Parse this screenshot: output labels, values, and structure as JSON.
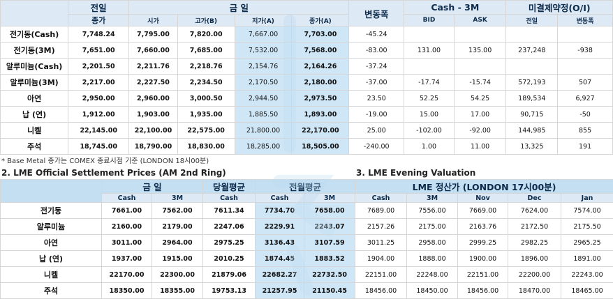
{
  "top": {
    "headers": {
      "prev_day_top": "전일",
      "prev_day_bottom": "종가",
      "today": "금      일",
      "open": "시가",
      "high": "고가(B)",
      "low": "저가(A)",
      "close": "종가(A)",
      "change": "변동폭",
      "cash3m": "Cash - 3M",
      "bid": "BID",
      "ask": "ASK",
      "oi": "미결제약정(O/I)",
      "oi_prev": "전일",
      "oi_change": "변동폭"
    },
    "rows": [
      {
        "label": "전기동(Cash)",
        "prev": "7,748.24",
        "open": "7,795.00",
        "high": "7,820.00",
        "low": "7,667.00",
        "close": "7,703.00",
        "change": "-45.24",
        "bid": "",
        "ask": "",
        "oi": "",
        "oi_change": ""
      },
      {
        "label": "전기동(3M)",
        "prev": "7,651.00",
        "open": "7,660.00",
        "high": "7,685.00",
        "low": "7,532.00",
        "close": "7,568.00",
        "change": "-83.00",
        "bid": "131.00",
        "ask": "135.00",
        "oi": "237,248",
        "oi_change": "-938"
      },
      {
        "label": "알루미늄(Cash)",
        "prev": "2,201.50",
        "open": "2,211.76",
        "high": "2,218.76",
        "low": "2,154.76",
        "close": "2,164.26",
        "change": "-37.24",
        "bid": "",
        "ask": "",
        "oi": "",
        "oi_change": ""
      },
      {
        "label": "알루미늄(3M)",
        "prev": "2,217.00",
        "open": "2,227.50",
        "high": "2,234.50",
        "low": "2,170.50",
        "close": "2,180.00",
        "change": "-37.00",
        "bid": "-17.74",
        "ask": "-15.74",
        "oi": "572,193",
        "oi_change": "507"
      },
      {
        "label": "아연",
        "prev": "2,950.00",
        "open": "2,960.00",
        "high": "3,000.50",
        "low": "2,944.50",
        "close": "2,973.50",
        "change": "23.50",
        "bid": "52.25",
        "ask": "54.25",
        "oi": "189,534",
        "oi_change": "6,927"
      },
      {
        "label": "납 (연)",
        "prev": "1,912.00",
        "open": "1,903.00",
        "high": "1,935.00",
        "low": "1,885.50",
        "close": "1,893.00",
        "change": "-19.00",
        "bid": "15.00",
        "ask": "17.00",
        "oi": "90,715",
        "oi_change": "-50"
      },
      {
        "label": "니켈",
        "prev": "22,145.00",
        "open": "22,100.00",
        "high": "22,575.00",
        "low": "21,800.00",
        "close": "22,170.00",
        "change": "25.00",
        "bid": "-102.00",
        "ask": "-92.00",
        "oi": "144,985",
        "oi_change": "855"
      },
      {
        "label": "주석",
        "prev": "18,745.00",
        "open": "18,790.00",
        "high": "18,830.00",
        "low": "18,285.00",
        "close": "18,505.00",
        "change": "-240.00",
        "bid": "1.00",
        "ask": "11.00",
        "oi": "13,325",
        "oi_change": "191"
      }
    ]
  },
  "note": "* Base Metal 종가는 COMEX 종료시점 기준 (LONDON 18시00분)",
  "section2_title": "2. LME Official Settlement Prices (AM 2nd Ring)",
  "section3_title": "3. LME Evening Valuation",
  "bottom": {
    "headers": {
      "today": "금      일",
      "month_avg": "당월평균",
      "prev_month_avg": "전월평균",
      "eval": "LME 정산가 (LONDON 17시00분)",
      "cash": "Cash",
      "m3": "3M",
      "nov": "Nov",
      "dec": "Dec",
      "jan": "Jan"
    },
    "rows": [
      {
        "label": "전기동",
        "today_cash": "7661.00",
        "today_3m": "7562.00",
        "month_cash": "7611.34",
        "prev_cash": "7734.70",
        "prev_3m": "7658.00",
        "e_cash": "7689.00",
        "e_3m": "7556.00",
        "nov": "7669.00",
        "dec": "7624.00",
        "jan": "7574.00"
      },
      {
        "label": "알루미늄",
        "today_cash": "2160.00",
        "today_3m": "2179.00",
        "month_cash": "2247.06",
        "prev_cash": "2229.91",
        "prev_3m": "2243.07",
        "e_cash": "2157.26",
        "e_3m": "2175.00",
        "nov": "2163.76",
        "dec": "2172.50",
        "jan": "2175.50"
      },
      {
        "label": "아연",
        "today_cash": "3011.00",
        "today_3m": "2964.00",
        "month_cash": "2975.25",
        "prev_cash": "3136.43",
        "prev_3m": "3107.59",
        "e_cash": "3011.25",
        "e_3m": "2958.00",
        "nov": "2999.25",
        "dec": "2982.25",
        "jan": "2965.25"
      },
      {
        "label": "납 (연)",
        "today_cash": "1937.00",
        "today_3m": "1915.00",
        "month_cash": "2010.25",
        "prev_cash": "1874.45",
        "prev_3m": "1883.52",
        "e_cash": "1904.00",
        "e_3m": "1888.00",
        "nov": "1900.00",
        "dec": "1896.00",
        "jan": "1891.00"
      },
      {
        "label": "니켈",
        "today_cash": "22170.00",
        "today_3m": "22300.00",
        "month_cash": "21879.06",
        "prev_cash": "22682.27",
        "prev_3m": "22732.50",
        "e_cash": "22151.00",
        "e_3m": "22248.00",
        "nov": "22151.00",
        "dec": "22200.00",
        "jan": "22243.00"
      },
      {
        "label": "주석",
        "today_cash": "18350.00",
        "today_3m": "18355.00",
        "month_cash": "19753.13",
        "prev_cash": "21257.95",
        "prev_3m": "21150.45",
        "e_cash": "18456.00",
        "e_3m": "18450.00",
        "nov": "18456.00",
        "dec": "18470.00",
        "jan": "18465.00"
      }
    ]
  }
}
